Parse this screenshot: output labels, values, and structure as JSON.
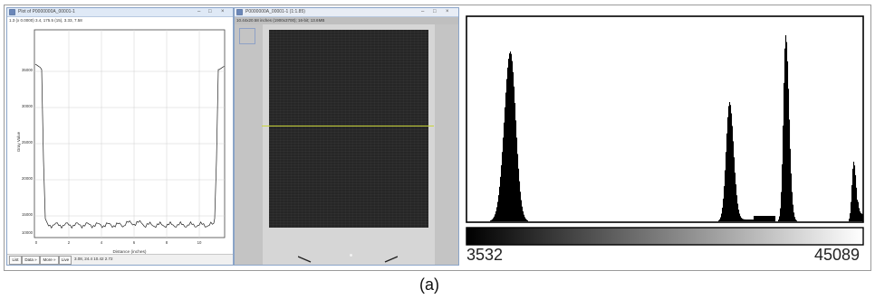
{
  "profile_window": {
    "title": "Plot of P0000000A_00001-1",
    "info": "1.3 (x 0.0000) 3.4, 175.5 (15), 3.33, 7.58",
    "y_axis_label": "Gray Value",
    "x_axis_label": "Distance (inches)",
    "y_ticks": [
      "35000",
      "30000",
      "25000",
      "20000",
      "15000",
      "10000"
    ],
    "x_ticks": [
      "0",
      "2",
      "4",
      "6",
      "8",
      "10"
    ],
    "buttons": [
      "List",
      "Data »",
      "More »",
      "Live"
    ],
    "status": "3.08, 24.4 10.42 2.72"
  },
  "image_window": {
    "title": "P0000000A_00001-1 (1:1.85)",
    "info": "10.44x20.58 inches (1900x3700); 16-bit; 13.6MB"
  },
  "histogram": {
    "min_label": "3532",
    "max_label": "45089",
    "colors": {
      "bars": "#000000",
      "frame": "#000000"
    }
  },
  "caption": "(a)"
}
